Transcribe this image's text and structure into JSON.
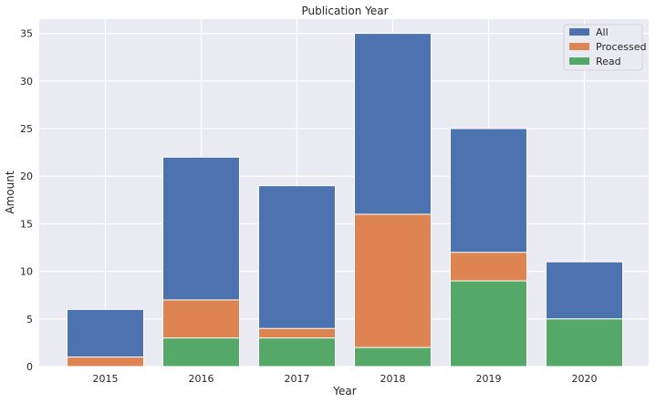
{
  "chart_data": {
    "type": "bar",
    "stacking": "overlaid",
    "title": "Publication Year",
    "xlabel": "Year",
    "ylabel": "Amount",
    "categories": [
      "2015",
      "2016",
      "2017",
      "2018",
      "2019",
      "2020"
    ],
    "ylim": [
      0,
      36.5
    ],
    "yticks": [
      0,
      5,
      10,
      15,
      20,
      25,
      30,
      35
    ],
    "grid": true,
    "legend_position": "top-right",
    "series": [
      {
        "name": "All",
        "color": "#4c72b0",
        "values": [
          6,
          22,
          19,
          35,
          25,
          11
        ]
      },
      {
        "name": "Processed",
        "color": "#dd8452",
        "values": [
          1,
          7,
          4,
          16,
          12,
          5
        ]
      },
      {
        "name": "Read",
        "color": "#55a868",
        "values": [
          0,
          3,
          3,
          2,
          9,
          5
        ]
      }
    ]
  }
}
